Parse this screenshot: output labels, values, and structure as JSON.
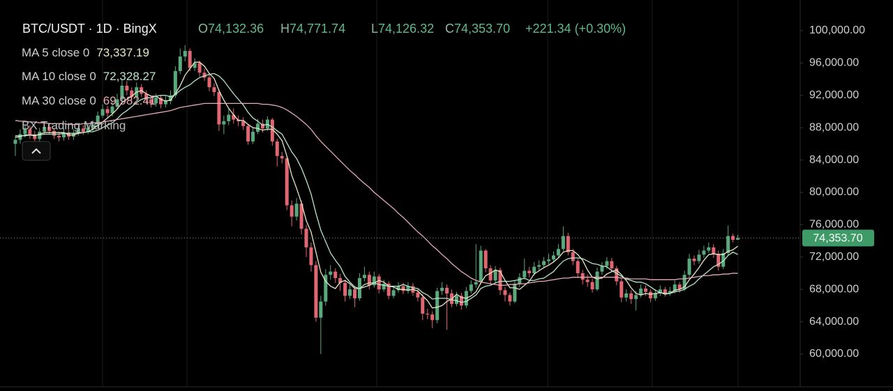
{
  "chart_data": {
    "type": "candlestick",
    "title": "BTC/USDT · 1D · BingX",
    "ohlc_header": {
      "labels": [
        "O",
        "H",
        "L",
        "C"
      ],
      "values": [
        "74,132.36",
        "74,771.74",
        "74,126.32",
        "74,353.70"
      ],
      "change": "+221.34 (+0.30%)"
    },
    "indicators": [
      {
        "name": "MA 5 close 0",
        "value_label": "73,337.19",
        "color": "#e9e6c3",
        "values": [
          86800,
          86900,
          87100,
          87100,
          87000,
          87200,
          87400,
          87400,
          87400,
          87400,
          87400,
          87100,
          87100,
          87300,
          87400,
          87500,
          87800,
          88300,
          88700,
          89200,
          89700,
          90300,
          91100,
          91500,
          91900,
          92400,
          92600,
          92200,
          91900,
          91900,
          91500,
          91300,
          91400,
          92200,
          93200,
          94500,
          95300,
          96100,
          96100,
          95600,
          94700,
          94100,
          92600,
          91400,
          90400,
          89600,
          88900,
          88900,
          88400,
          88000,
          87900,
          87700,
          87800,
          87800,
          87200,
          86400,
          84500,
          82100,
          80500,
          78700,
          76500,
          75100,
          72600,
          70100,
          69000,
          68400,
          68100,
          68900,
          69100,
          68700,
          68100,
          68100,
          68300,
          68500,
          68800,
          69100,
          68900,
          68400,
          68300,
          68000,
          68000,
          67900,
          68000,
          67800,
          67200,
          66600,
          65700,
          65800,
          66000,
          66500,
          66800,
          67400,
          67000,
          66900,
          67200,
          67700,
          68800,
          69700,
          70000,
          70400,
          70200,
          69100,
          68200,
          68200,
          68000,
          68500,
          69000,
          69900,
          70300,
          70700,
          71000,
          71400,
          71900,
          72600,
          72800,
          72800,
          72300,
          71600,
          70400,
          69500,
          69300,
          69400,
          69900,
          70200,
          70400,
          69800,
          69100,
          68200,
          67500,
          67300,
          67500,
          67400,
          67500,
          67600,
          67500,
          67500,
          67900,
          68000,
          68300,
          69200,
          69900,
          70700,
          71600,
          72300,
          72400,
          72300,
          72300,
          72700,
          72900,
          73337.19
        ]
      },
      {
        "name": "MA 10 close 0",
        "value_label": "72,328.27",
        "color": "#b5e6c9",
        "values": [
          87000,
          87000,
          87000,
          87100,
          87100,
          87100,
          87200,
          87200,
          87200,
          87200,
          87300,
          87300,
          87300,
          87400,
          87400,
          87500,
          87500,
          87700,
          88000,
          88300,
          88600,
          89100,
          89700,
          90100,
          90600,
          91100,
          91500,
          91700,
          91700,
          91900,
          92000,
          92000,
          91800,
          92100,
          92600,
          93000,
          93300,
          93800,
          94200,
          94400,
          94600,
          94700,
          94400,
          93800,
          93000,
          92200,
          91500,
          90800,
          89900,
          89200,
          88800,
          88300,
          88400,
          88100,
          87600,
          87200,
          86100,
          85000,
          84200,
          83000,
          81500,
          79800,
          77400,
          75300,
          73900,
          72500,
          71600,
          70800,
          69600,
          68900,
          68300,
          68100,
          68600,
          68800,
          68800,
          68600,
          68500,
          68400,
          68400,
          68400,
          68600,
          68400,
          68200,
          68100,
          67600,
          67300,
          66800,
          66900,
          66900,
          66900,
          66700,
          66600,
          66400,
          66500,
          66900,
          67300,
          68100,
          68400,
          68500,
          68800,
          69000,
          69000,
          69000,
          69100,
          69200,
          69400,
          69100,
          69100,
          69300,
          69400,
          69800,
          70200,
          70900,
          71500,
          71800,
          71900,
          71900,
          71800,
          71500,
          71200,
          71100,
          70900,
          70800,
          70300,
          70000,
          69600,
          69300,
          69100,
          68900,
          68900,
          68700,
          68300,
          67900,
          67600,
          67400,
          67500,
          67700,
          67800,
          68000,
          68400,
          68700,
          69300,
          69800,
          70300,
          70800,
          71100,
          71500,
          72200,
          72600,
          72328.27
        ]
      },
      {
        "name": "MA 30 close 0",
        "value_label": "69,982.41",
        "color": "#e7a9b6",
        "values": [
          88900,
          88800,
          88800,
          88700,
          88700,
          88600,
          88600,
          88500,
          88500,
          88500,
          88500,
          88400,
          88400,
          88400,
          88500,
          88500,
          88600,
          88600,
          88700,
          88800,
          88900,
          89000,
          89100,
          89200,
          89300,
          89400,
          89500,
          89600,
          89700,
          89800,
          89900,
          90000,
          90100,
          90300,
          90500,
          90600,
          90700,
          90800,
          90900,
          91000,
          91000,
          91000,
          91000,
          91000,
          91000,
          91000,
          91000,
          91000,
          91000,
          91000,
          91000,
          90900,
          90900,
          90800,
          90700,
          90500,
          90200,
          89800,
          89400,
          88900,
          88400,
          87800,
          87000,
          86300,
          85700,
          85100,
          84500,
          83900,
          83300,
          82700,
          82200,
          81600,
          81100,
          80600,
          80000,
          79500,
          79000,
          78500,
          78000,
          77400,
          76900,
          76300,
          75700,
          75100,
          74600,
          74000,
          73400,
          72900,
          72300,
          71800,
          71200,
          70700,
          70200,
          69800,
          69400,
          69100,
          68900,
          68800,
          68700,
          68600,
          68500,
          68500,
          68600,
          68600,
          68700,
          68700,
          68800,
          68900,
          69000,
          69000,
          69100,
          69200,
          69300,
          69400,
          69400,
          69500,
          69500,
          69500,
          69500,
          69500,
          69500,
          69500,
          69500,
          69500,
          69500,
          69400,
          69400,
          69300,
          69300,
          69300,
          69300,
          69200,
          69200,
          69200,
          69200,
          69200,
          69200,
          69300,
          69300,
          69400,
          69500,
          69600,
          69700,
          69700,
          69800,
          69800,
          69900,
          69900,
          70000,
          69982.41
        ]
      }
    ],
    "extra_indicator": "BX Trading Marking",
    "up_color": "#5aa97c",
    "down_color": "#e06772",
    "open": [
      86000,
      86500,
      87200,
      87800,
      87000,
      86600,
      87500,
      88100,
      87600,
      87000,
      86800,
      87400,
      86900,
      87300,
      87900,
      87500,
      88000,
      88400,
      89500,
      90300,
      89800,
      90600,
      91500,
      93200,
      92600,
      91800,
      93000,
      92200,
      91500,
      91000,
      91700,
      90900,
      91300,
      92000,
      95000,
      96800,
      97500,
      95400,
      96000,
      94800,
      94200,
      93000,
      92400,
      88400,
      88800,
      89600,
      89000,
      88800,
      88200,
      86300,
      87500,
      88500,
      87900,
      89000,
      86300,
      84500,
      84200,
      78400,
      77000,
      78600,
      75500,
      73200,
      71000,
      64500,
      66500,
      69800,
      70200,
      69400,
      68800,
      67200,
      68000,
      66900,
      69400,
      69800,
      68500,
      69600,
      68000,
      68700,
      67200,
      67900,
      68400,
      67800,
      68400,
      67600,
      67000,
      65000,
      64900,
      64200,
      67800,
      68200,
      67500,
      66200,
      67200,
      66000,
      67800,
      68600,
      68900,
      72800,
      70600,
      69100,
      70400,
      67900,
      67300,
      66500,
      68700,
      69500,
      70300,
      70000,
      70800,
      71000,
      71500,
      71700,
      72200,
      73000,
      74600,
      72600,
      71500,
      70000,
      69200,
      68900,
      68000,
      70200,
      70900,
      71500,
      70600,
      69000,
      67000,
      67500,
      66800,
      67300,
      68100,
      67700,
      66900,
      67500,
      68000,
      67500,
      67800,
      68600,
      68000,
      69800,
      71800,
      71500,
      72300,
      72800,
      73200,
      72400,
      70800,
      72500,
      74600,
      74132.36
    ],
    "high": [
      87000,
      87800,
      88400,
      88300,
      87600,
      88000,
      88600,
      88600,
      88000,
      87500,
      87900,
      87800,
      87800,
      88300,
      88300,
      88500,
      88900,
      90000,
      90900,
      90700,
      91200,
      92200,
      94000,
      93800,
      93000,
      93600,
      93400,
      92600,
      91900,
      92200,
      92000,
      91900,
      92600,
      95600,
      97800,
      98200,
      97800,
      96600,
      96300,
      95300,
      94600,
      93500,
      92800,
      89500,
      90300,
      90400,
      89500,
      89300,
      88500,
      88000,
      89100,
      89000,
      89400,
      89200,
      86600,
      85000,
      84500,
      79000,
      79300,
      79000,
      76000,
      73800,
      71500,
      67200,
      70500,
      71000,
      70600,
      69900,
      69200,
      68600,
      68400,
      70000,
      70800,
      70200,
      70200,
      69900,
      69200,
      69000,
      68400,
      68900,
      68800,
      68900,
      68800,
      68000,
      67400,
      65600,
      65300,
      68200,
      68900,
      68600,
      68000,
      67700,
      67600,
      68300,
      69100,
      73600,
      73400,
      73000,
      71000,
      70900,
      70700,
      68300,
      67600,
      69100,
      70000,
      71800,
      70800,
      71400,
      71600,
      72000,
      72400,
      72700,
      73600,
      75800,
      75000,
      73000,
      71800,
      70400,
      69800,
      69300,
      70700,
      71400,
      72000,
      71900,
      70900,
      69300,
      68000,
      67900,
      67800,
      68600,
      68500,
      68000,
      68000,
      68500,
      68300,
      68300,
      69100,
      68900,
      70300,
      72400,
      72200,
      72900,
      73400,
      73800,
      73600,
      72800,
      73000,
      75900,
      74900,
      74771.74
    ],
    "low": [
      84500,
      86000,
      86800,
      86600,
      86000,
      86200,
      87100,
      87200,
      86600,
      86300,
      86400,
      86500,
      86500,
      87000,
      87100,
      87200,
      87600,
      88000,
      89200,
      89300,
      89400,
      90300,
      91200,
      92000,
      91300,
      91400,
      91800,
      91000,
      90500,
      90600,
      90400,
      90500,
      90900,
      91700,
      94600,
      96200,
      95000,
      95000,
      94300,
      93800,
      92500,
      91900,
      87600,
      87200,
      88300,
      88500,
      88200,
      87700,
      85900,
      86000,
      87200,
      87400,
      87600,
      85800,
      83200,
      83600,
      77800,
      75800,
      76500,
      74800,
      72000,
      70200,
      64000,
      60000,
      66000,
      69200,
      68800,
      67800,
      66500,
      66800,
      65800,
      66600,
      69000,
      68000,
      68200,
      67500,
      67700,
      66800,
      66900,
      67600,
      67400,
      67500,
      67200,
      66500,
      64200,
      64300,
      63200,
      63800,
      67300,
      63000,
      65800,
      65900,
      65500,
      65700,
      67500,
      68200,
      68600,
      70100,
      68600,
      68800,
      67300,
      66500,
      66000,
      66300,
      68300,
      69200,
      69500,
      69700,
      70400,
      70600,
      71100,
      71400,
      71900,
      72700,
      72200,
      71000,
      69400,
      68600,
      68300,
      67600,
      67800,
      69800,
      70500,
      70100,
      68500,
      66400,
      66500,
      66200,
      65400,
      67000,
      67200,
      66400,
      66600,
      67200,
      67100,
      67200,
      67500,
      67600,
      67800,
      69500,
      71000,
      71200,
      71900,
      72500,
      71900,
      70300,
      70500,
      72200,
      73800,
      74126.32
    ],
    "close": [
      86500,
      87200,
      87800,
      87000,
      86600,
      87500,
      88100,
      87600,
      87000,
      86800,
      87400,
      86900,
      87300,
      87900,
      87500,
      88000,
      88400,
      89500,
      90300,
      89800,
      90600,
      91500,
      93200,
      92600,
      91800,
      93000,
      92200,
      91500,
      91000,
      91700,
      90900,
      91300,
      92000,
      95000,
      96800,
      97500,
      95400,
      96000,
      94800,
      94200,
      93000,
      92400,
      88400,
      88800,
      89600,
      89000,
      88800,
      88200,
      86300,
      87500,
      88500,
      87900,
      89000,
      86300,
      84500,
      84200,
      78400,
      77000,
      78600,
      75500,
      73200,
      71000,
      64500,
      66500,
      69800,
      70200,
      69400,
      68800,
      67200,
      68000,
      66900,
      69400,
      69800,
      68500,
      69600,
      68000,
      68700,
      67200,
      67900,
      68400,
      67800,
      68400,
      67600,
      67000,
      65000,
      64900,
      64200,
      67800,
      68200,
      67500,
      66200,
      67200,
      66000,
      67800,
      68600,
      68900,
      72800,
      70600,
      69100,
      70400,
      67900,
      67300,
      66500,
      68700,
      69500,
      70300,
      70000,
      70800,
      71000,
      71500,
      71700,
      72200,
      73000,
      74600,
      72600,
      71500,
      70000,
      69200,
      68900,
      68000,
      70200,
      70900,
      71500,
      70600,
      69000,
      67000,
      67500,
      66800,
      67300,
      68100,
      67700,
      66900,
      67500,
      68000,
      67500,
      67800,
      68600,
      68000,
      69800,
      71800,
      71500,
      72300,
      72800,
      73200,
      72400,
      70800,
      72500,
      74600,
      74132.36,
      74353.7
    ],
    "last_price": {
      "value": 74353.7,
      "label": "74,353.70"
    },
    "ylim": [
      55948,
      103793
    ],
    "yticks": [
      {
        "value": 60000,
        "label": "60,000.00"
      },
      {
        "value": 64000,
        "label": "64,000.00"
      },
      {
        "value": 68000,
        "label": "68,000.00"
      },
      {
        "value": 72000,
        "label": "72,000.00"
      },
      {
        "value": 76000,
        "label": "76,000.00"
      },
      {
        "value": 80000,
        "label": "80,000.00"
      },
      {
        "value": 84000,
        "label": "84,000.00"
      },
      {
        "value": 88000,
        "label": "88,000.00"
      },
      {
        "value": 92000,
        "label": "92,000.00"
      },
      {
        "value": 96000,
        "label": "96,000.00"
      },
      {
        "value": 100000,
        "label": "100,000.00"
      }
    ],
    "grid": false
  }
}
